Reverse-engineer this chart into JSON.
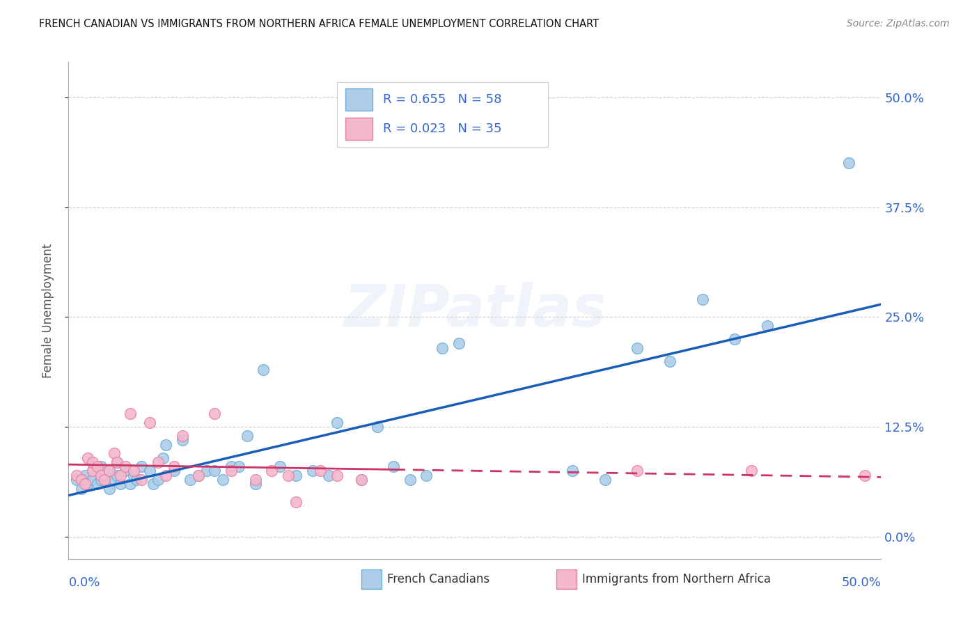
{
  "title": "FRENCH CANADIAN VS IMMIGRANTS FROM NORTHERN AFRICA FEMALE UNEMPLOYMENT CORRELATION CHART",
  "source": "Source: ZipAtlas.com",
  "ylabel": "Female Unemployment",
  "xlim": [
    0.0,
    0.5
  ],
  "ylim": [
    -0.025,
    0.54
  ],
  "legend_label1": "French Canadians",
  "legend_label2": "Immigrants from Northern Africa",
  "blue_face": "#aecde8",
  "blue_edge": "#6aaed6",
  "pink_face": "#f4b8cc",
  "pink_edge": "#e87ea1",
  "line_blue": "#1a5eb8",
  "line_pink": "#cc3366",
  "text_blue": "#3366cc",
  "watermark": "ZIPatlas",
  "R1": "0.655",
  "N1": "58",
  "R2": "0.023",
  "N2": "35",
  "blue_x": [
    0.005,
    0.008,
    0.01,
    0.012,
    0.015,
    0.015,
    0.018,
    0.02,
    0.02,
    0.022,
    0.025,
    0.025,
    0.028,
    0.03,
    0.03,
    0.032,
    0.035,
    0.038,
    0.04,
    0.042,
    0.045,
    0.05,
    0.052,
    0.055,
    0.058,
    0.06,
    0.065,
    0.07,
    0.075,
    0.08,
    0.085,
    0.09,
    0.095,
    0.1,
    0.105,
    0.11,
    0.115,
    0.12,
    0.13,
    0.14,
    0.15,
    0.16,
    0.165,
    0.18,
    0.19,
    0.2,
    0.21,
    0.22,
    0.23,
    0.24,
    0.31,
    0.33,
    0.35,
    0.37,
    0.39,
    0.41,
    0.43,
    0.48
  ],
  "blue_y": [
    0.065,
    0.055,
    0.07,
    0.06,
    0.065,
    0.075,
    0.06,
    0.065,
    0.08,
    0.07,
    0.055,
    0.075,
    0.065,
    0.07,
    0.085,
    0.06,
    0.075,
    0.06,
    0.07,
    0.065,
    0.08,
    0.075,
    0.06,
    0.065,
    0.09,
    0.105,
    0.075,
    0.11,
    0.065,
    0.07,
    0.075,
    0.075,
    0.065,
    0.08,
    0.08,
    0.115,
    0.06,
    0.19,
    0.08,
    0.07,
    0.075,
    0.07,
    0.13,
    0.065,
    0.125,
    0.08,
    0.065,
    0.07,
    0.215,
    0.22,
    0.075,
    0.065,
    0.215,
    0.2,
    0.27,
    0.225,
    0.24,
    0.425
  ],
  "pink_x": [
    0.005,
    0.008,
    0.01,
    0.012,
    0.015,
    0.015,
    0.018,
    0.02,
    0.022,
    0.025,
    0.028,
    0.03,
    0.032,
    0.035,
    0.038,
    0.04,
    0.045,
    0.05,
    0.055,
    0.06,
    0.065,
    0.07,
    0.08,
    0.09,
    0.1,
    0.115,
    0.125,
    0.135,
    0.14,
    0.155,
    0.165,
    0.18,
    0.35,
    0.42,
    0.49
  ],
  "pink_y": [
    0.07,
    0.065,
    0.06,
    0.09,
    0.075,
    0.085,
    0.08,
    0.07,
    0.065,
    0.075,
    0.095,
    0.085,
    0.07,
    0.08,
    0.14,
    0.075,
    0.065,
    0.13,
    0.085,
    0.07,
    0.08,
    0.115,
    0.07,
    0.14,
    0.075,
    0.065,
    0.075,
    0.07,
    0.04,
    0.075,
    0.07,
    0.065,
    0.075,
    0.075,
    0.07
  ]
}
